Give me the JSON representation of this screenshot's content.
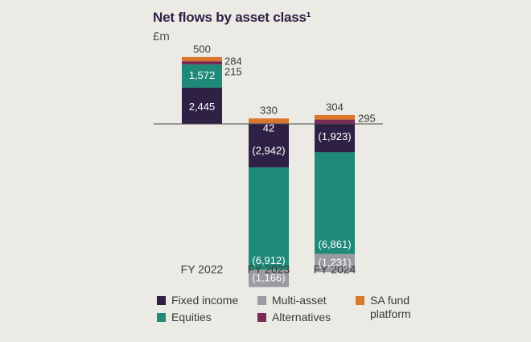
{
  "chart_data": {
    "type": "bar",
    "stacked": true,
    "title": "Net flows by asset class¹",
    "ylabel": "£m",
    "categories": [
      "FY 2022",
      "FY 2023",
      "FY 2024"
    ],
    "series": [
      {
        "name": "Fixed income",
        "color": "#2E2145",
        "values": [
          2445,
          -2942,
          -1923
        ],
        "labels": [
          "2,445",
          "(2,942)",
          "(1,923)"
        ]
      },
      {
        "name": "Equities",
        "color": "#1F8A78",
        "values": [
          1572,
          -6912,
          -6861
        ],
        "labels": [
          "1,572",
          "(6,912)",
          "(6,861)"
        ]
      },
      {
        "name": "Alternatives",
        "color": "#7A2A55",
        "values": [
          215,
          42,
          295
        ],
        "labels": [
          "215",
          "42",
          "295"
        ]
      },
      {
        "name": "Multi-asset",
        "color": "#9A9CA1",
        "values": [
          0,
          -1166,
          -1231
        ],
        "labels": [
          "",
          "(1,166)",
          "(1,231)"
        ]
      },
      {
        "name": "SA fund\nplatform",
        "color": "#D9772B",
        "values": [
          284,
          330,
          304
        ],
        "labels": [
          "284",
          "330",
          "304"
        ]
      }
    ],
    "extra_labels": [
      "500"
    ]
  }
}
